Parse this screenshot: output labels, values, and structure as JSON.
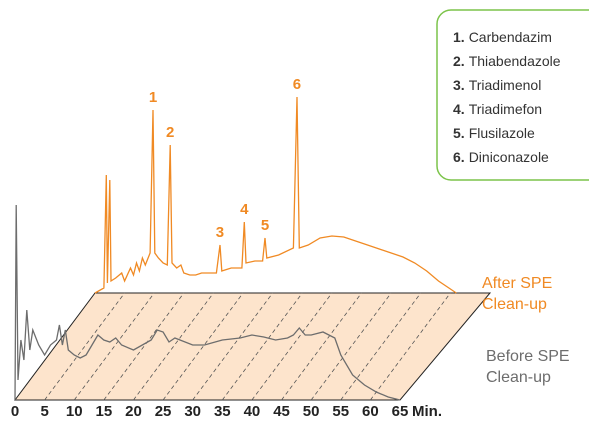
{
  "chart_data": {
    "type": "line",
    "x_label": "Min.",
    "xlim": [
      0,
      65
    ],
    "xticks": [
      0,
      5,
      10,
      15,
      20,
      25,
      30,
      35,
      40,
      45,
      50,
      55,
      60,
      65
    ],
    "ylim": [
      0,
      200
    ],
    "series": [
      {
        "name": "After SPE Clean-up",
        "color": "#f08a24",
        "x": [
          0,
          1.5,
          1.9,
          2.1,
          2.5,
          2.7,
          3.5,
          4.5,
          5,
          6,
          6.5,
          7,
          7.5,
          8,
          8.5,
          9.3,
          9.8,
          10.1,
          10.7,
          11.5,
          12.2,
          12.7,
          13,
          13.8,
          14.5,
          15,
          16,
          17,
          18,
          19,
          20.5,
          21.1,
          21.4,
          23,
          24.8,
          25.2,
          25.5,
          27,
          28.3,
          28.7,
          29,
          31,
          33.5,
          34.1,
          34.5,
          36,
          38,
          40,
          42,
          44,
          46,
          48,
          50,
          52,
          54,
          56,
          58,
          60,
          61
        ],
        "values": [
          0,
          5,
          118,
          10,
          113,
          12,
          15,
          20,
          12,
          25,
          18,
          30,
          22,
          35,
          28,
          40,
          183,
          40,
          35,
          30,
          28,
          148,
          30,
          25,
          28,
          20,
          18,
          18,
          20,
          20,
          20,
          48,
          22,
          25,
          25,
          71,
          30,
          32,
          32,
          55,
          35,
          38,
          45,
          196,
          45,
          48,
          55,
          57,
          56,
          52,
          48,
          44,
          40,
          36,
          30,
          22,
          12,
          4,
          0
        ]
      },
      {
        "name": "Before SPE Clean-up",
        "color": "#6d6d6d",
        "x": [
          0,
          0.2,
          0.5,
          1,
          1.5,
          2,
          2.5,
          3,
          4,
          5,
          6,
          7,
          7.5,
          8,
          8.5,
          9,
          10,
          11,
          12,
          13,
          14,
          15,
          16,
          17,
          18,
          20,
          23,
          24,
          25,
          26,
          27,
          30,
          32,
          35,
          38,
          40,
          42,
          44,
          46,
          47,
          48,
          49,
          50,
          52,
          54,
          55,
          57,
          59,
          61,
          63,
          65
        ],
        "values": [
          0,
          195,
          20,
          60,
          40,
          90,
          50,
          70,
          55,
          45,
          55,
          60,
          75,
          55,
          70,
          50,
          45,
          42,
          45,
          55,
          65,
          60,
          58,
          62,
          55,
          50,
          60,
          70,
          68,
          58,
          62,
          55,
          55,
          60,
          62,
          65,
          63,
          60,
          62,
          65,
          72,
          65,
          65,
          68,
          62,
          45,
          25,
          15,
          8,
          3,
          0
        ]
      }
    ],
    "peak_labels": [
      {
        "label": "1",
        "x": 9.8,
        "y": 183
      },
      {
        "label": "2",
        "x": 12.7,
        "y": 148
      },
      {
        "label": "3",
        "x": 21.1,
        "y": 48
      },
      {
        "label": "4",
        "x": 25.2,
        "y": 71
      },
      {
        "label": "5",
        "x": 28.7,
        "y": 55
      },
      {
        "label": "6",
        "x": 34.1,
        "y": 196
      }
    ],
    "compounds": [
      {
        "number": "1.",
        "name": "Carbendazim"
      },
      {
        "number": "2.",
        "name": "Thiabendazole"
      },
      {
        "number": "3.",
        "name": "Triadimenol"
      },
      {
        "number": "4.",
        "name": "Triadimefon"
      },
      {
        "number": "5.",
        "name": "Flusilazole"
      },
      {
        "number": "6.",
        "name": "Diniconazole"
      }
    ]
  }
}
